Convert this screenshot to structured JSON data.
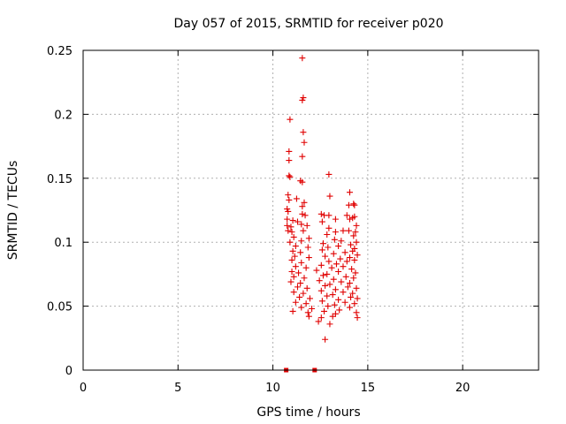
{
  "chart_data": {
    "type": "scatter",
    "title": "Day 057 of 2015, SRMTID for receiver p020",
    "xlabel": "GPS time / hours",
    "ylabel": "SRMTID / TECUs",
    "xlim": [
      0,
      24
    ],
    "ylim": [
      0,
      0.25
    ],
    "xticks": [
      0,
      5,
      10,
      15,
      20
    ],
    "yticks": [
      0,
      0.05,
      0.1,
      0.15,
      0.2,
      0.25
    ],
    "x_tick_labels": [
      "0",
      "5",
      "10",
      "15",
      "20"
    ],
    "y_tick_labels": [
      "0",
      "0.05",
      "0.1",
      "0.15",
      "0.2",
      "0.25"
    ],
    "grid": true,
    "marker": "plus",
    "color": "#e00000",
    "series": [
      {
        "name": "SRMTID",
        "points": [
          [
            11.55,
            0.244
          ],
          [
            11.6,
            0.213
          ],
          [
            11.55,
            0.211
          ],
          [
            10.9,
            0.196
          ],
          [
            11.6,
            0.186
          ],
          [
            11.65,
            0.178
          ],
          [
            10.85,
            0.171
          ],
          [
            10.85,
            0.164
          ],
          [
            11.55,
            0.167
          ],
          [
            12.95,
            0.153
          ],
          [
            10.85,
            0.152
          ],
          [
            10.9,
            0.151
          ],
          [
            11.45,
            0.148
          ],
          [
            11.55,
            0.147
          ],
          [
            14.05,
            0.139
          ],
          [
            10.8,
            0.137
          ],
          [
            11.25,
            0.134
          ],
          [
            10.85,
            0.133
          ],
          [
            13.0,
            0.136
          ],
          [
            11.65,
            0.131
          ],
          [
            11.55,
            0.128
          ],
          [
            14.25,
            0.13
          ],
          [
            14.3,
            0.129
          ],
          [
            14.0,
            0.129
          ],
          [
            10.75,
            0.126
          ],
          [
            10.8,
            0.124
          ],
          [
            11.55,
            0.122
          ],
          [
            11.7,
            0.121
          ],
          [
            12.55,
            0.122
          ],
          [
            12.7,
            0.121
          ],
          [
            12.95,
            0.121
          ],
          [
            13.9,
            0.121
          ],
          [
            14.05,
            0.118
          ],
          [
            14.2,
            0.119
          ],
          [
            14.3,
            0.12
          ],
          [
            10.75,
            0.118
          ],
          [
            11.05,
            0.117
          ],
          [
            11.3,
            0.116
          ],
          [
            12.6,
            0.116
          ],
          [
            13.3,
            0.118
          ],
          [
            10.75,
            0.113
          ],
          [
            10.95,
            0.112
          ],
          [
            11.5,
            0.114
          ],
          [
            11.8,
            0.113
          ],
          [
            12.95,
            0.111
          ],
          [
            14.4,
            0.113
          ],
          [
            10.8,
            0.109
          ],
          [
            11.0,
            0.108
          ],
          [
            11.6,
            0.109
          ],
          [
            13.3,
            0.108
          ],
          [
            13.7,
            0.109
          ],
          [
            14.0,
            0.109
          ],
          [
            14.35,
            0.108
          ],
          [
            11.1,
            0.104
          ],
          [
            11.9,
            0.103
          ],
          [
            12.85,
            0.106
          ],
          [
            13.25,
            0.102
          ],
          [
            14.25,
            0.105
          ],
          [
            10.9,
            0.1
          ],
          [
            11.5,
            0.101
          ],
          [
            12.65,
            0.099
          ],
          [
            13.6,
            0.101
          ],
          [
            14.1,
            0.098
          ],
          [
            14.4,
            0.1
          ],
          [
            11.2,
            0.097
          ],
          [
            11.85,
            0.096
          ],
          [
            12.9,
            0.096
          ],
          [
            13.45,
            0.097
          ],
          [
            14.3,
            0.095
          ],
          [
            11.05,
            0.093
          ],
          [
            11.45,
            0.092
          ],
          [
            12.6,
            0.094
          ],
          [
            13.2,
            0.091
          ],
          [
            13.8,
            0.092
          ],
          [
            14.2,
            0.093
          ],
          [
            11.15,
            0.089
          ],
          [
            11.9,
            0.088
          ],
          [
            12.75,
            0.089
          ],
          [
            13.55,
            0.087
          ],
          [
            14.05,
            0.088
          ],
          [
            14.45,
            0.09
          ],
          [
            11.0,
            0.086
          ],
          [
            11.5,
            0.084
          ],
          [
            12.95,
            0.085
          ],
          [
            13.35,
            0.083
          ],
          [
            13.9,
            0.085
          ],
          [
            14.3,
            0.086
          ],
          [
            11.2,
            0.081
          ],
          [
            11.75,
            0.08
          ],
          [
            12.55,
            0.082
          ],
          [
            13.1,
            0.08
          ],
          [
            13.7,
            0.081
          ],
          [
            14.15,
            0.079
          ],
          [
            11.0,
            0.077
          ],
          [
            11.35,
            0.076
          ],
          [
            12.3,
            0.078
          ],
          [
            12.85,
            0.075
          ],
          [
            13.45,
            0.077
          ],
          [
            14.35,
            0.076
          ],
          [
            11.1,
            0.073
          ],
          [
            11.65,
            0.072
          ],
          [
            12.65,
            0.074
          ],
          [
            13.2,
            0.071
          ],
          [
            13.85,
            0.073
          ],
          [
            14.25,
            0.072
          ],
          [
            10.95,
            0.069
          ],
          [
            11.45,
            0.068
          ],
          [
            12.45,
            0.07
          ],
          [
            13.0,
            0.067
          ],
          [
            13.6,
            0.069
          ],
          [
            14.05,
            0.068
          ],
          [
            11.3,
            0.065
          ],
          [
            11.8,
            0.064
          ],
          [
            12.75,
            0.066
          ],
          [
            13.3,
            0.063
          ],
          [
            13.95,
            0.065
          ],
          [
            14.4,
            0.064
          ],
          [
            11.1,
            0.061
          ],
          [
            11.6,
            0.06
          ],
          [
            12.55,
            0.062
          ],
          [
            13.15,
            0.059
          ],
          [
            13.7,
            0.061
          ],
          [
            14.2,
            0.06
          ],
          [
            11.4,
            0.057
          ],
          [
            11.95,
            0.056
          ],
          [
            12.85,
            0.058
          ],
          [
            13.45,
            0.055
          ],
          [
            14.1,
            0.057
          ],
          [
            14.45,
            0.056
          ],
          [
            11.2,
            0.053
          ],
          [
            11.75,
            0.052
          ],
          [
            12.6,
            0.054
          ],
          [
            13.25,
            0.051
          ],
          [
            13.8,
            0.053
          ],
          [
            14.3,
            0.052
          ],
          [
            11.5,
            0.049
          ],
          [
            12.05,
            0.048
          ],
          [
            12.9,
            0.05
          ],
          [
            13.5,
            0.047
          ],
          [
            14.05,
            0.049
          ],
          [
            11.05,
            0.046
          ],
          [
            11.85,
            0.045
          ],
          [
            12.7,
            0.046
          ],
          [
            13.3,
            0.044
          ],
          [
            14.4,
            0.045
          ],
          [
            11.9,
            0.042
          ],
          [
            12.55,
            0.041
          ],
          [
            13.15,
            0.042
          ],
          [
            14.45,
            0.041
          ],
          [
            12.4,
            0.038
          ],
          [
            13.0,
            0.036
          ],
          [
            12.75,
            0.024
          ]
        ]
      }
    ],
    "zero_markers": [
      10.7,
      12.2
    ]
  }
}
